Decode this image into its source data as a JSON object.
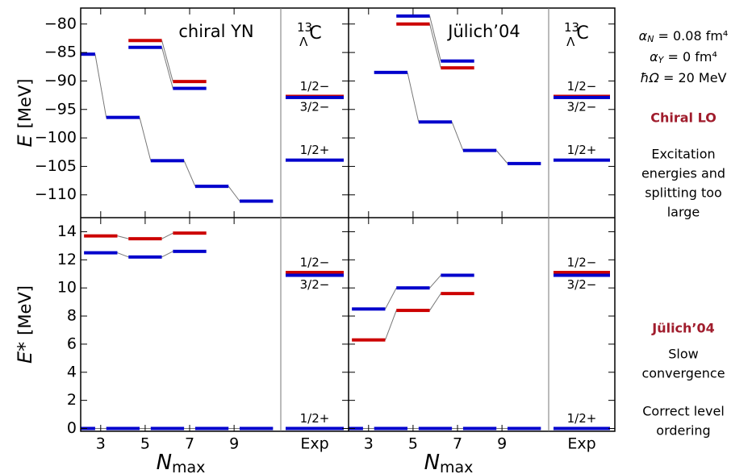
{
  "chart_data": [
    {
      "type": "levels",
      "title": "chiral YN",
      "nucleus": {
        "mass": "13",
        "hyperon": "Λ",
        "element": "C"
      },
      "ylabel": "E",
      "yunit": "[MeV]",
      "xlim": [
        2.1,
        11.1
      ],
      "ylim": [
        -114,
        -77.2
      ],
      "xticks": [
        3,
        5,
        7,
        9
      ],
      "yticks": [
        {
          "value": -80,
          "label": "−80"
        },
        {
          "value": -85,
          "label": "−85"
        },
        {
          "value": -90,
          "label": "−90"
        },
        {
          "value": -95,
          "label": "−95"
        },
        {
          "value": -100,
          "label": "−100"
        },
        {
          "value": -105,
          "label": "−105"
        },
        {
          "value": -110,
          "label": "−110"
        }
      ],
      "series": [
        {
          "color": "#0000cc",
          "x": [
            2,
            4,
            6,
            8,
            10
          ],
          "values": [
            -85.3,
            -96.4,
            -104.0,
            -108.5,
            -111.1
          ]
        },
        {
          "color": "#cc0000",
          "x": [
            5,
            7
          ],
          "values": [
            -82.9,
            -90.1
          ]
        },
        {
          "color": "#0000cc",
          "x": [
            5,
            7
          ],
          "values": [
            -84.1,
            -91.3
          ]
        }
      ],
      "exp": {
        "levels": [
          {
            "label": "1/2−",
            "value": -92.7,
            "color": "#cc0000"
          },
          {
            "label": "3/2−",
            "value": -92.9,
            "color": "#0000cc"
          },
          {
            "label": "1/2+",
            "value": -103.9,
            "color": "#0000cc"
          }
        ]
      }
    },
    {
      "type": "levels",
      "title": "Jülich’04",
      "nucleus": {
        "mass": "13",
        "hyperon": "Λ",
        "element": "C"
      },
      "xlim": [
        2.1,
        11.1
      ],
      "ylim": [
        -114,
        -77.2
      ],
      "xticks": [
        3,
        5,
        7,
        9
      ],
      "yticks": [
        -80,
        -85,
        -90,
        -95,
        -100,
        -105,
        -110
      ],
      "series": [
        {
          "color": "#0000cc",
          "x": [
            4,
            6,
            8,
            10
          ],
          "values": [
            -88.5,
            -97.2,
            -102.2,
            -104.5
          ]
        },
        {
          "color": "#cc0000",
          "x": [
            5,
            7
          ],
          "values": [
            -80.0,
            -87.7
          ]
        },
        {
          "color": "#0000cc",
          "x": [
            5,
            7
          ],
          "values": [
            -78.6,
            -86.5
          ]
        }
      ],
      "exp": {
        "levels": [
          {
            "label": "1/2−",
            "value": -92.7,
            "color": "#cc0000"
          },
          {
            "label": "3/2−",
            "value": -92.9,
            "color": "#0000cc"
          },
          {
            "label": "1/2+",
            "value": -103.9,
            "color": "#0000cc"
          }
        ]
      }
    },
    {
      "type": "levels",
      "ylabel": "E*",
      "yunit": "[MeV]",
      "xlabel": "N",
      "xlabel_sub": "max",
      "xlim": [
        2.1,
        11.1
      ],
      "ylim": [
        -0.2,
        15
      ],
      "xticks": [
        3,
        5,
        7,
        9
      ],
      "yticks": [
        0,
        2,
        4,
        6,
        8,
        10,
        12,
        14
      ],
      "series": [
        {
          "color": "#0000cc",
          "x": [
            2,
            4,
            6,
            8,
            10
          ],
          "values": [
            0,
            0,
            0,
            0,
            0
          ]
        },
        {
          "color": "#cc0000",
          "x": [
            3,
            5,
            7
          ],
          "values": [
            13.7,
            13.5,
            13.9
          ]
        },
        {
          "color": "#0000cc",
          "x": [
            3,
            5,
            7
          ],
          "values": [
            12.5,
            12.2,
            12.6
          ]
        }
      ],
      "exp": {
        "label": "Exp",
        "levels": [
          {
            "label": "1/2−",
            "value": 11.1,
            "color": "#cc0000"
          },
          {
            "label": "3/2−",
            "value": 10.9,
            "color": "#0000cc"
          },
          {
            "label": "1/2+",
            "value": 0,
            "color": "#0000cc"
          }
        ]
      }
    },
    {
      "type": "levels",
      "xlabel": "N",
      "xlabel_sub": "max",
      "xlim": [
        2.1,
        11.1
      ],
      "ylim": [
        -0.2,
        15
      ],
      "xticks": [
        3,
        5,
        7,
        9
      ],
      "yticks": [
        0,
        2,
        4,
        6,
        8,
        10,
        12,
        14
      ],
      "series": [
        {
          "color": "#0000cc",
          "x": [
            2,
            4,
            6,
            8,
            10
          ],
          "values": [
            0,
            0,
            0,
            0,
            0
          ]
        },
        {
          "color": "#cc0000",
          "x": [
            3,
            5,
            7
          ],
          "values": [
            6.3,
            8.4,
            9.6
          ]
        },
        {
          "color": "#0000cc",
          "x": [
            3,
            5,
            7
          ],
          "values": [
            8.5,
            10.0,
            10.9
          ]
        }
      ],
      "exp": {
        "label": "Exp",
        "levels": [
          {
            "label": "1/2−",
            "value": 11.1,
            "color": "#cc0000"
          },
          {
            "label": "3/2−",
            "value": 10.9,
            "color": "#0000cc"
          },
          {
            "label": "1/2+",
            "value": 0,
            "color": "#0000cc"
          }
        ]
      }
    }
  ],
  "sidebar": {
    "params": [
      {
        "symbol": "α",
        "sub": "N",
        "value": " = 0.08 fm⁴"
      },
      {
        "symbol": "α",
        "sub": "Y",
        "value": " = 0 fm⁴"
      },
      {
        "symbol": "ħΩ",
        "value": " = 20 MeV"
      }
    ],
    "sections": [
      {
        "title": "Chiral LO",
        "lines": [
          "Excitation",
          "energies and",
          "splitting too",
          "large"
        ]
      },
      {
        "title": "Jülich’04",
        "lines": [
          "Slow",
          "convergence"
        ]
      },
      {
        "lines": [
          "Correct level",
          "ordering"
        ]
      }
    ]
  }
}
